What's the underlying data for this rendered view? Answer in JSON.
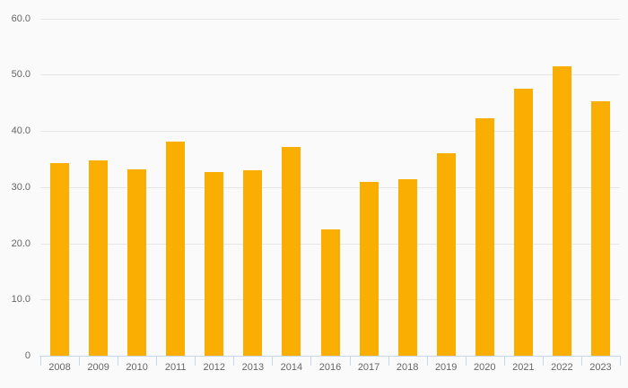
{
  "chart_data": {
    "type": "bar",
    "title": "",
    "xlabel": "",
    "ylabel": "",
    "legend": false,
    "grid": true,
    "categories": [
      "2008",
      "2009",
      "2010",
      "2011",
      "2012",
      "2013",
      "2014",
      "2016",
      "2017",
      "2018",
      "2019",
      "2020",
      "2021",
      "2022",
      "2023"
    ],
    "values": [
      34.4,
      34.9,
      33.3,
      38.2,
      32.7,
      33.0,
      37.2,
      22.5,
      31.0,
      31.4,
      36.1,
      42.3,
      47.6,
      51.6,
      45.4
    ],
    "ylim": [
      0,
      60
    ],
    "yticks": [
      0,
      10,
      20,
      30,
      40,
      50,
      60
    ],
    "ytick_labels": [
      "0",
      "10.0",
      "20.0",
      "30.0",
      "40.0",
      "50.0",
      "60.0"
    ],
    "colors": {
      "bar": "#FAAE01",
      "background": "#FAFAFA",
      "gridline": "#E6E6E6",
      "axis_line": "#CCD6EB",
      "tick": "#CCD6EB",
      "label_text": "#666666"
    }
  }
}
